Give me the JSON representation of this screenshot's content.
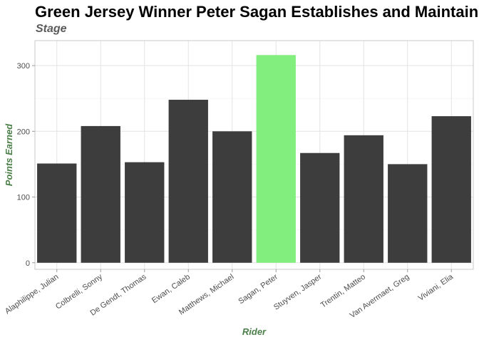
{
  "chart_data": {
    "type": "bar",
    "title": "Green Jersey Winner Peter Sagan Establishes and Maintains",
    "subtitle": "Stage",
    "xlabel": "Rider",
    "ylabel": "Points Earned",
    "categories": [
      "Alaphilippe, Julian",
      "Colbrelli, Sonny",
      "De Gendt, Thomas",
      "Ewan, Caleb",
      "Matthews, Michael",
      "Sagan, Peter",
      "Stuyven, Jasper",
      "Trentin, Matteo",
      "Van Avermaet, Greg",
      "Viviani, Elia"
    ],
    "values": [
      151,
      208,
      153,
      248,
      200,
      316,
      167,
      194,
      150,
      223
    ],
    "highlight": "Sagan, Peter",
    "ylim": [
      -10,
      338
    ],
    "yticks": [
      0,
      100,
      200,
      300
    ],
    "grid": true,
    "legend": "none",
    "colors": {
      "bar": "#3d3d3d",
      "highlight": "#82ee7d",
      "axis_title": "#4b7f48"
    }
  }
}
